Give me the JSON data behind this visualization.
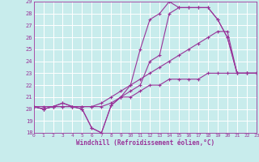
{
  "xlabel": "Windchill (Refroidissement éolien,°C)",
  "background_color": "#c8ecec",
  "line_color": "#993399",
  "grid_color": "#ffffff",
  "ylim": [
    18,
    29
  ],
  "xlim": [
    0,
    23
  ],
  "yticks": [
    18,
    19,
    20,
    21,
    22,
    23,
    24,
    25,
    26,
    27,
    28,
    29
  ],
  "xticks": [
    0,
    1,
    2,
    3,
    4,
    5,
    6,
    7,
    8,
    9,
    10,
    11,
    12,
    13,
    14,
    15,
    16,
    17,
    18,
    19,
    20,
    21,
    22,
    23
  ],
  "lines": [
    {
      "x": [
        0,
        1,
        2,
        3,
        4,
        5,
        6,
        7,
        8,
        9,
        10,
        11,
        12,
        13,
        14,
        15,
        16,
        17,
        18,
        19,
        20,
        21,
        22,
        23
      ],
      "y": [
        20.2,
        20.0,
        20.2,
        20.5,
        20.2,
        20.0,
        18.4,
        18.0,
        20.3,
        21.0,
        22.0,
        25.0,
        27.5,
        28.0,
        29.0,
        28.5,
        28.5,
        28.5,
        28.5,
        27.5,
        26.0,
        23.0,
        23.0,
        23.0
      ]
    },
    {
      "x": [
        0,
        1,
        2,
        3,
        4,
        5,
        6,
        7,
        8,
        9,
        10,
        11,
        12,
        13,
        14,
        15,
        16,
        17,
        18,
        19,
        20,
        21,
        22,
        23
      ],
      "y": [
        20.2,
        20.0,
        20.2,
        20.5,
        20.2,
        20.0,
        18.4,
        18.0,
        20.3,
        21.0,
        21.5,
        22.0,
        24.0,
        24.5,
        28.0,
        28.5,
        28.5,
        28.5,
        28.5,
        27.5,
        26.0,
        23.0,
        23.0,
        23.0
      ]
    },
    {
      "x": [
        0,
        1,
        2,
        3,
        4,
        5,
        6,
        7,
        8,
        9,
        10,
        11,
        12,
        13,
        14,
        15,
        16,
        17,
        18,
        19,
        20,
        21,
        22,
        23
      ],
      "y": [
        20.2,
        20.2,
        20.2,
        20.2,
        20.2,
        20.2,
        20.2,
        20.5,
        21.0,
        21.5,
        22.0,
        22.5,
        23.0,
        23.5,
        24.0,
        24.5,
        25.0,
        25.5,
        26.0,
        26.5,
        26.5,
        23.0,
        23.0,
        23.0
      ]
    },
    {
      "x": [
        0,
        1,
        2,
        3,
        4,
        5,
        6,
        7,
        8,
        9,
        10,
        11,
        12,
        13,
        14,
        15,
        16,
        17,
        18,
        19,
        20,
        21,
        22,
        23
      ],
      "y": [
        20.2,
        20.0,
        20.2,
        20.2,
        20.2,
        20.2,
        20.2,
        20.2,
        20.5,
        21.0,
        21.0,
        21.5,
        22.0,
        22.0,
        22.5,
        22.5,
        22.5,
        22.5,
        23.0,
        23.0,
        23.0,
        23.0,
        23.0,
        23.0
      ]
    }
  ]
}
